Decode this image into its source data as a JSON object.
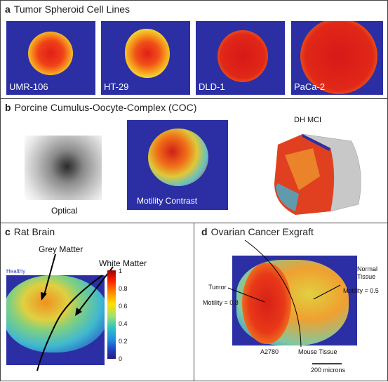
{
  "panel_a": {
    "letter": "a",
    "title": "Tumor Spheroid Cell Lines",
    "images": [
      {
        "label": "UMR-106"
      },
      {
        "label": "HT-29"
      },
      {
        "label": "DLD-1"
      },
      {
        "label": "PaCa-2"
      }
    ]
  },
  "panel_b": {
    "letter": "b",
    "title": "Porcine Cumulus-Oocyte-Complex (COC)",
    "optical_label": "Optical",
    "motility_label": "Motility Contrast",
    "dh_label": "DH MCI"
  },
  "panel_c": {
    "letter": "c",
    "title": "Rat Brain",
    "healthy_label": "Healthy",
    "grey_label": "Grey Matter",
    "white_label": "White Matter",
    "colorbar_ticks": [
      "1",
      "0.8",
      "0.6",
      "0.4",
      "0.2",
      "0"
    ]
  },
  "panel_d": {
    "letter": "d",
    "title": "Ovarian Cancer Exgraft",
    "tumor_label": "Tumor",
    "tumor_motility": "Motility = 0.8",
    "normal_label_1": "Normal",
    "normal_label_2": "Tissue",
    "normal_motility": "Motility = 0.5",
    "a2780_label": "A2780",
    "mouse_label": "Mouse Tissue",
    "scale_label": "200 microns"
  },
  "colors": {
    "background_blue": "#2a2aa0",
    "hot_red": "#d01818",
    "hot_yellow": "#f0c020",
    "border": "#444444"
  }
}
